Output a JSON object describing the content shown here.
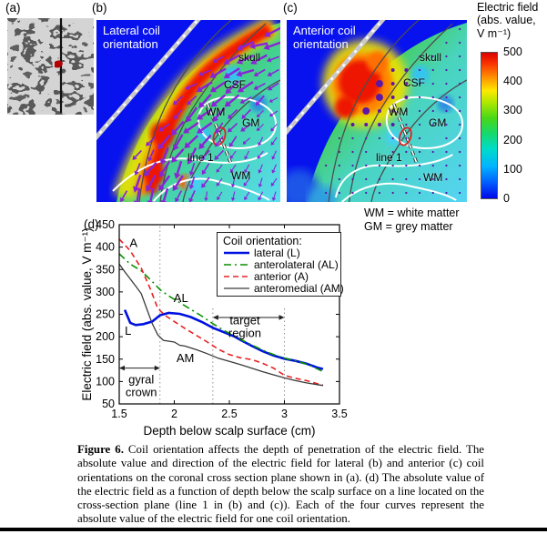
{
  "figure": {
    "panel_a_label": "(a)",
    "panel_b_label": "(b)",
    "panel_c_label": "(c)",
    "panel_d_label": "(d)"
  },
  "panel_b": {
    "title_line1": "Lateral coil",
    "title_line2": "orientation",
    "labels": {
      "skull": "skull",
      "csf": "CSF",
      "wm": "WM",
      "gm": "GM",
      "line1": "line 1",
      "wm2": "WM"
    }
  },
  "panel_c": {
    "title_line1": "Anterior coil",
    "title_line2": "orientation",
    "labels": {
      "skull": "skull",
      "csf": "CSF",
      "wm": "WM",
      "gm": "GM",
      "line1": "line 1",
      "wm2": "WM"
    }
  },
  "colorbar": {
    "title_lines": [
      "Electric field",
      "(abs. value,",
      "V m⁻¹)"
    ],
    "ticks": [
      "500",
      "400",
      "300",
      "200",
      "100",
      "0"
    ]
  },
  "notes": {
    "wm": "WM = white matter",
    "gm": "GM = grey matter"
  },
  "chart_data": {
    "type": "line",
    "xlabel": "Depth below scalp surface (cm)",
    "ylabel": "Electric field (abs. value, V m⁻¹)",
    "xlim": [
      1.5,
      3.5
    ],
    "ylim": [
      50,
      450
    ],
    "xticks": [
      1.5,
      2,
      2.5,
      3,
      3.5
    ],
    "xtick_labels": [
      "1.5",
      "2",
      "2.5",
      "3",
      "3.5"
    ],
    "yticks": [
      50,
      100,
      150,
      200,
      250,
      300,
      350,
      400,
      450
    ],
    "legend_title": "Coil orientation:",
    "legend_position": "top-right",
    "grid": false,
    "series": [
      {
        "name": "lateral (L)",
        "short": "L",
        "color": "#0010e0",
        "style": "solid-thick",
        "x": [
          1.55,
          1.6,
          1.65,
          1.72,
          1.8,
          1.87,
          1.95,
          2.05,
          2.15,
          2.25,
          2.35,
          2.45,
          2.55,
          2.6,
          2.7,
          2.8,
          2.9,
          3.0,
          3.1,
          3.2,
          3.3,
          3.35
        ],
        "y": [
          260,
          231,
          226,
          228,
          234,
          248,
          253,
          251,
          244,
          233,
          220,
          210,
          200,
          193,
          180,
          168,
          158,
          151,
          146,
          140,
          131,
          128
        ]
      },
      {
        "name": "anterolateral (AL)",
        "short": "AL",
        "color": "#089000",
        "style": "dashdot",
        "x": [
          1.5,
          1.6,
          1.7,
          1.8,
          1.87,
          1.95,
          2.05,
          2.15,
          2.25,
          2.35,
          2.45,
          2.55,
          2.65,
          2.75,
          2.85,
          2.95,
          3.05,
          3.15,
          3.25,
          3.35
        ],
        "y": [
          385,
          362,
          347,
          323,
          305,
          291,
          276,
          261,
          246,
          229,
          214,
          201,
          188,
          176,
          165,
          156,
          149,
          143,
          134,
          122
        ]
      },
      {
        "name": "anterior (A)",
        "short": "A",
        "color": "#e82020",
        "style": "dashed",
        "x": [
          1.5,
          1.6,
          1.7,
          1.78,
          1.85,
          1.92,
          2.0,
          2.1,
          2.2,
          2.3,
          2.4,
          2.5,
          2.6,
          2.7,
          2.8,
          2.9,
          3.0,
          3.1,
          3.2,
          3.3,
          3.35
        ],
        "y": [
          418,
          392,
          353,
          308,
          263,
          247,
          234,
          218,
          203,
          188,
          172,
          160,
          153,
          149,
          141,
          130,
          114,
          107,
          102,
          95,
          92
        ]
      },
      {
        "name": "anteromedial (AM)",
        "short": "AM",
        "color": "#3a3a3a",
        "style": "solid-thin",
        "x": [
          1.5,
          1.55,
          1.6,
          1.65,
          1.7,
          1.75,
          1.8,
          1.85,
          1.9,
          2.0,
          2.05,
          2.1,
          2.2,
          2.3,
          2.4,
          2.5,
          2.6,
          2.7,
          2.8,
          2.9,
          3.0,
          3.1,
          3.2,
          3.3,
          3.35
        ],
        "y": [
          362,
          345,
          329,
          313,
          296,
          262,
          229,
          204,
          192,
          188,
          181,
          179,
          171,
          162,
          152,
          145,
          138,
          130,
          122,
          115,
          108,
          102,
          97,
          93,
          91
        ]
      }
    ],
    "vlines": [
      {
        "x": 1.87,
        "y1": 50,
        "y2": 450
      },
      {
        "x": 2.35,
        "y1": 50,
        "y2": 268
      },
      {
        "x": 3.0,
        "y1": 50,
        "y2": 268
      }
    ],
    "annotations": [
      {
        "text": "A",
        "x": 1.63,
        "y": 408
      },
      {
        "text": "AL",
        "x": 2.06,
        "y": 286
      },
      {
        "text": "L",
        "x": 1.58,
        "y": 212
      },
      {
        "text": "AM",
        "x": 2.1,
        "y": 152
      },
      {
        "lines": [
          "gyral",
          "crown"
        ],
        "x": 1.7,
        "y": 90
      },
      {
        "lines": [
          "target",
          "region"
        ],
        "x": 2.64,
        "y": 222
      }
    ],
    "span_arrows": [
      {
        "x1": 1.5,
        "x2": 1.87,
        "y": 130,
        "label": "gyral crown extent"
      },
      {
        "x1": 2.35,
        "x2": 3.0,
        "y": 243,
        "label": "target region extent"
      }
    ]
  },
  "caption": {
    "label": "Figure 6.",
    "text": " Coil orientation affects the depth of penetration of the electric field. The absolute value and direction of the electric field for lateral (b) and anterior (c) coil orientations on the coronal cross section plane shown in (a). (d) The absolute value of the electric field as a function of depth below the scalp surface on a line located on the cross-section plane (line 1 in (b) and (c)). Each of the four curves represent the absolute value of the electric field for one coil orientation."
  }
}
